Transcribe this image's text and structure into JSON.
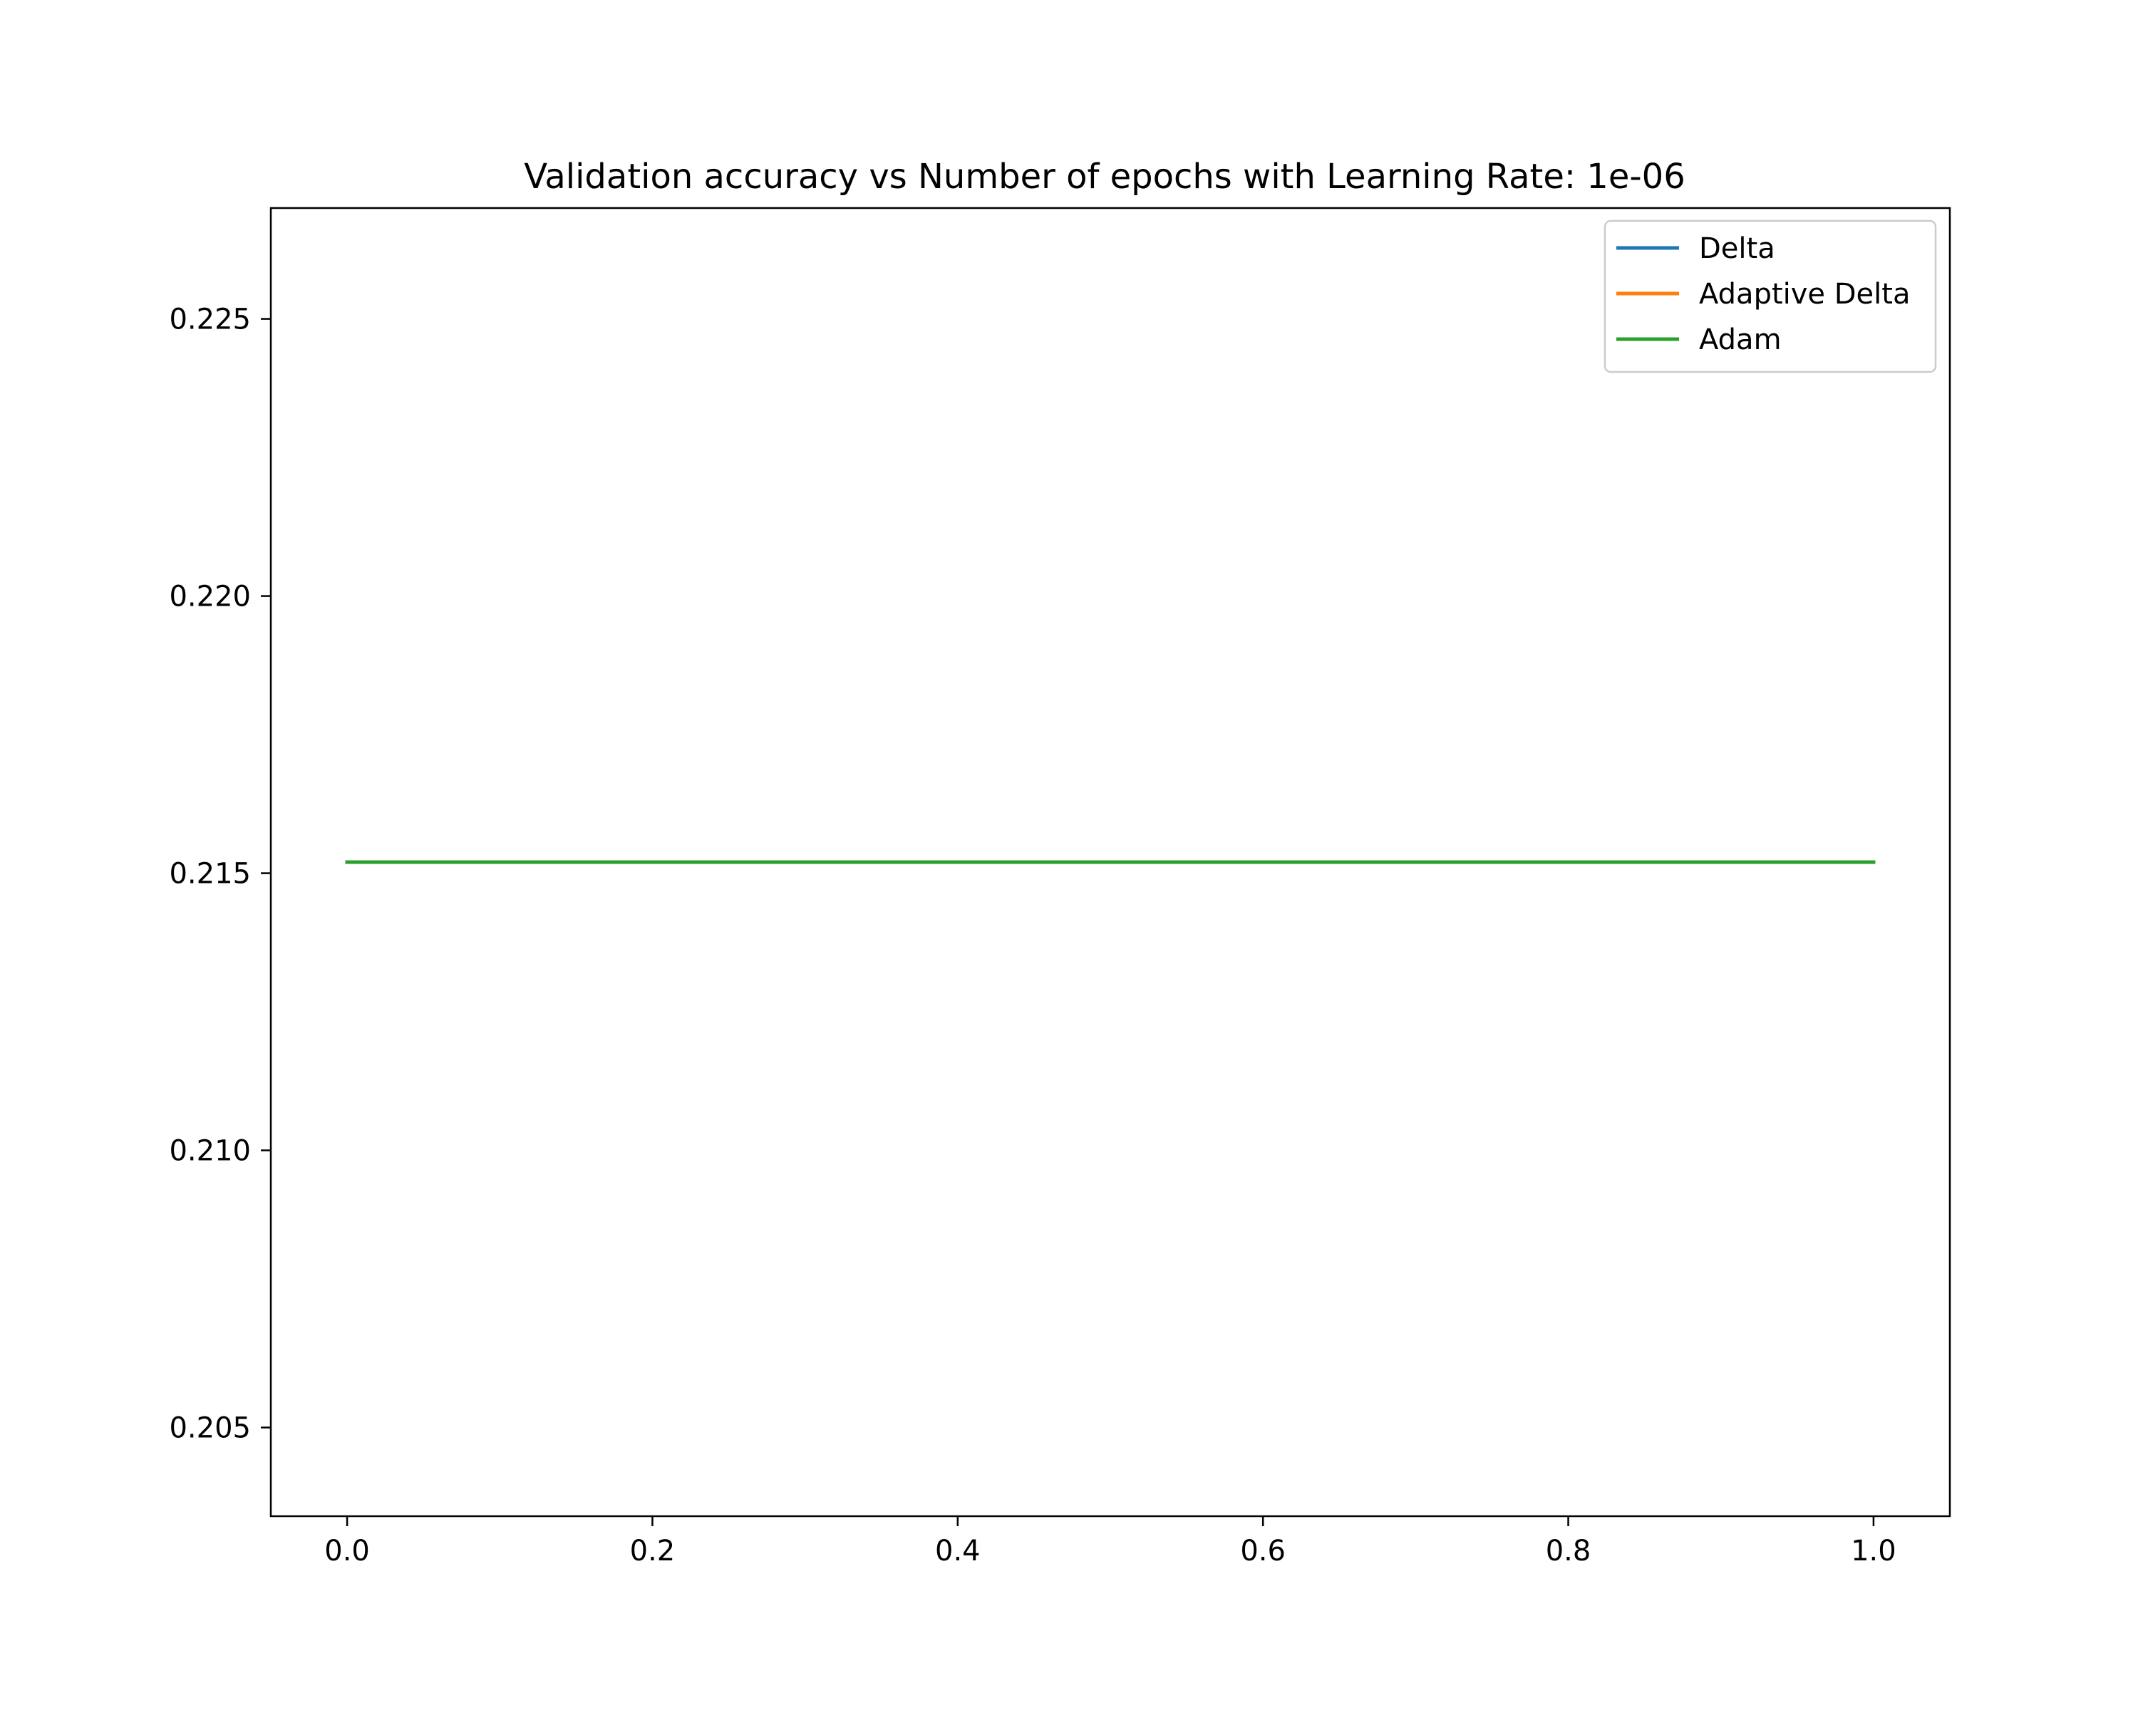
{
  "chart_data": {
    "type": "line",
    "title": "Validation accuracy vs Number of epochs with Learning Rate: 1e-06",
    "xlabel": "",
    "ylabel": "",
    "x": [
      0,
      1
    ],
    "xlim": [
      -0.05,
      1.05
    ],
    "ylim": [
      0.2034,
      0.227
    ],
    "xticks": [
      0.0,
      0.2,
      0.4,
      0.6,
      0.8,
      1.0
    ],
    "xtick_labels": [
      "0.0",
      "0.2",
      "0.4",
      "0.6",
      "0.8",
      "1.0"
    ],
    "yticks": [
      0.205,
      0.21,
      0.215,
      0.22,
      0.225
    ],
    "ytick_labels": [
      "0.205",
      "0.210",
      "0.215",
      "0.220",
      "0.225"
    ],
    "grid": false,
    "legend_position": "top-right",
    "series": [
      {
        "name": "Delta",
        "color": "#1f77b4",
        "values": [
          0.2152,
          0.2152
        ]
      },
      {
        "name": "Adaptive Delta",
        "color": "#ff7f0e",
        "values": [
          0.2152,
          0.2152
        ]
      },
      {
        "name": "Adam",
        "color": "#2ca02c",
        "values": [
          0.2152,
          0.2152
        ]
      }
    ]
  }
}
